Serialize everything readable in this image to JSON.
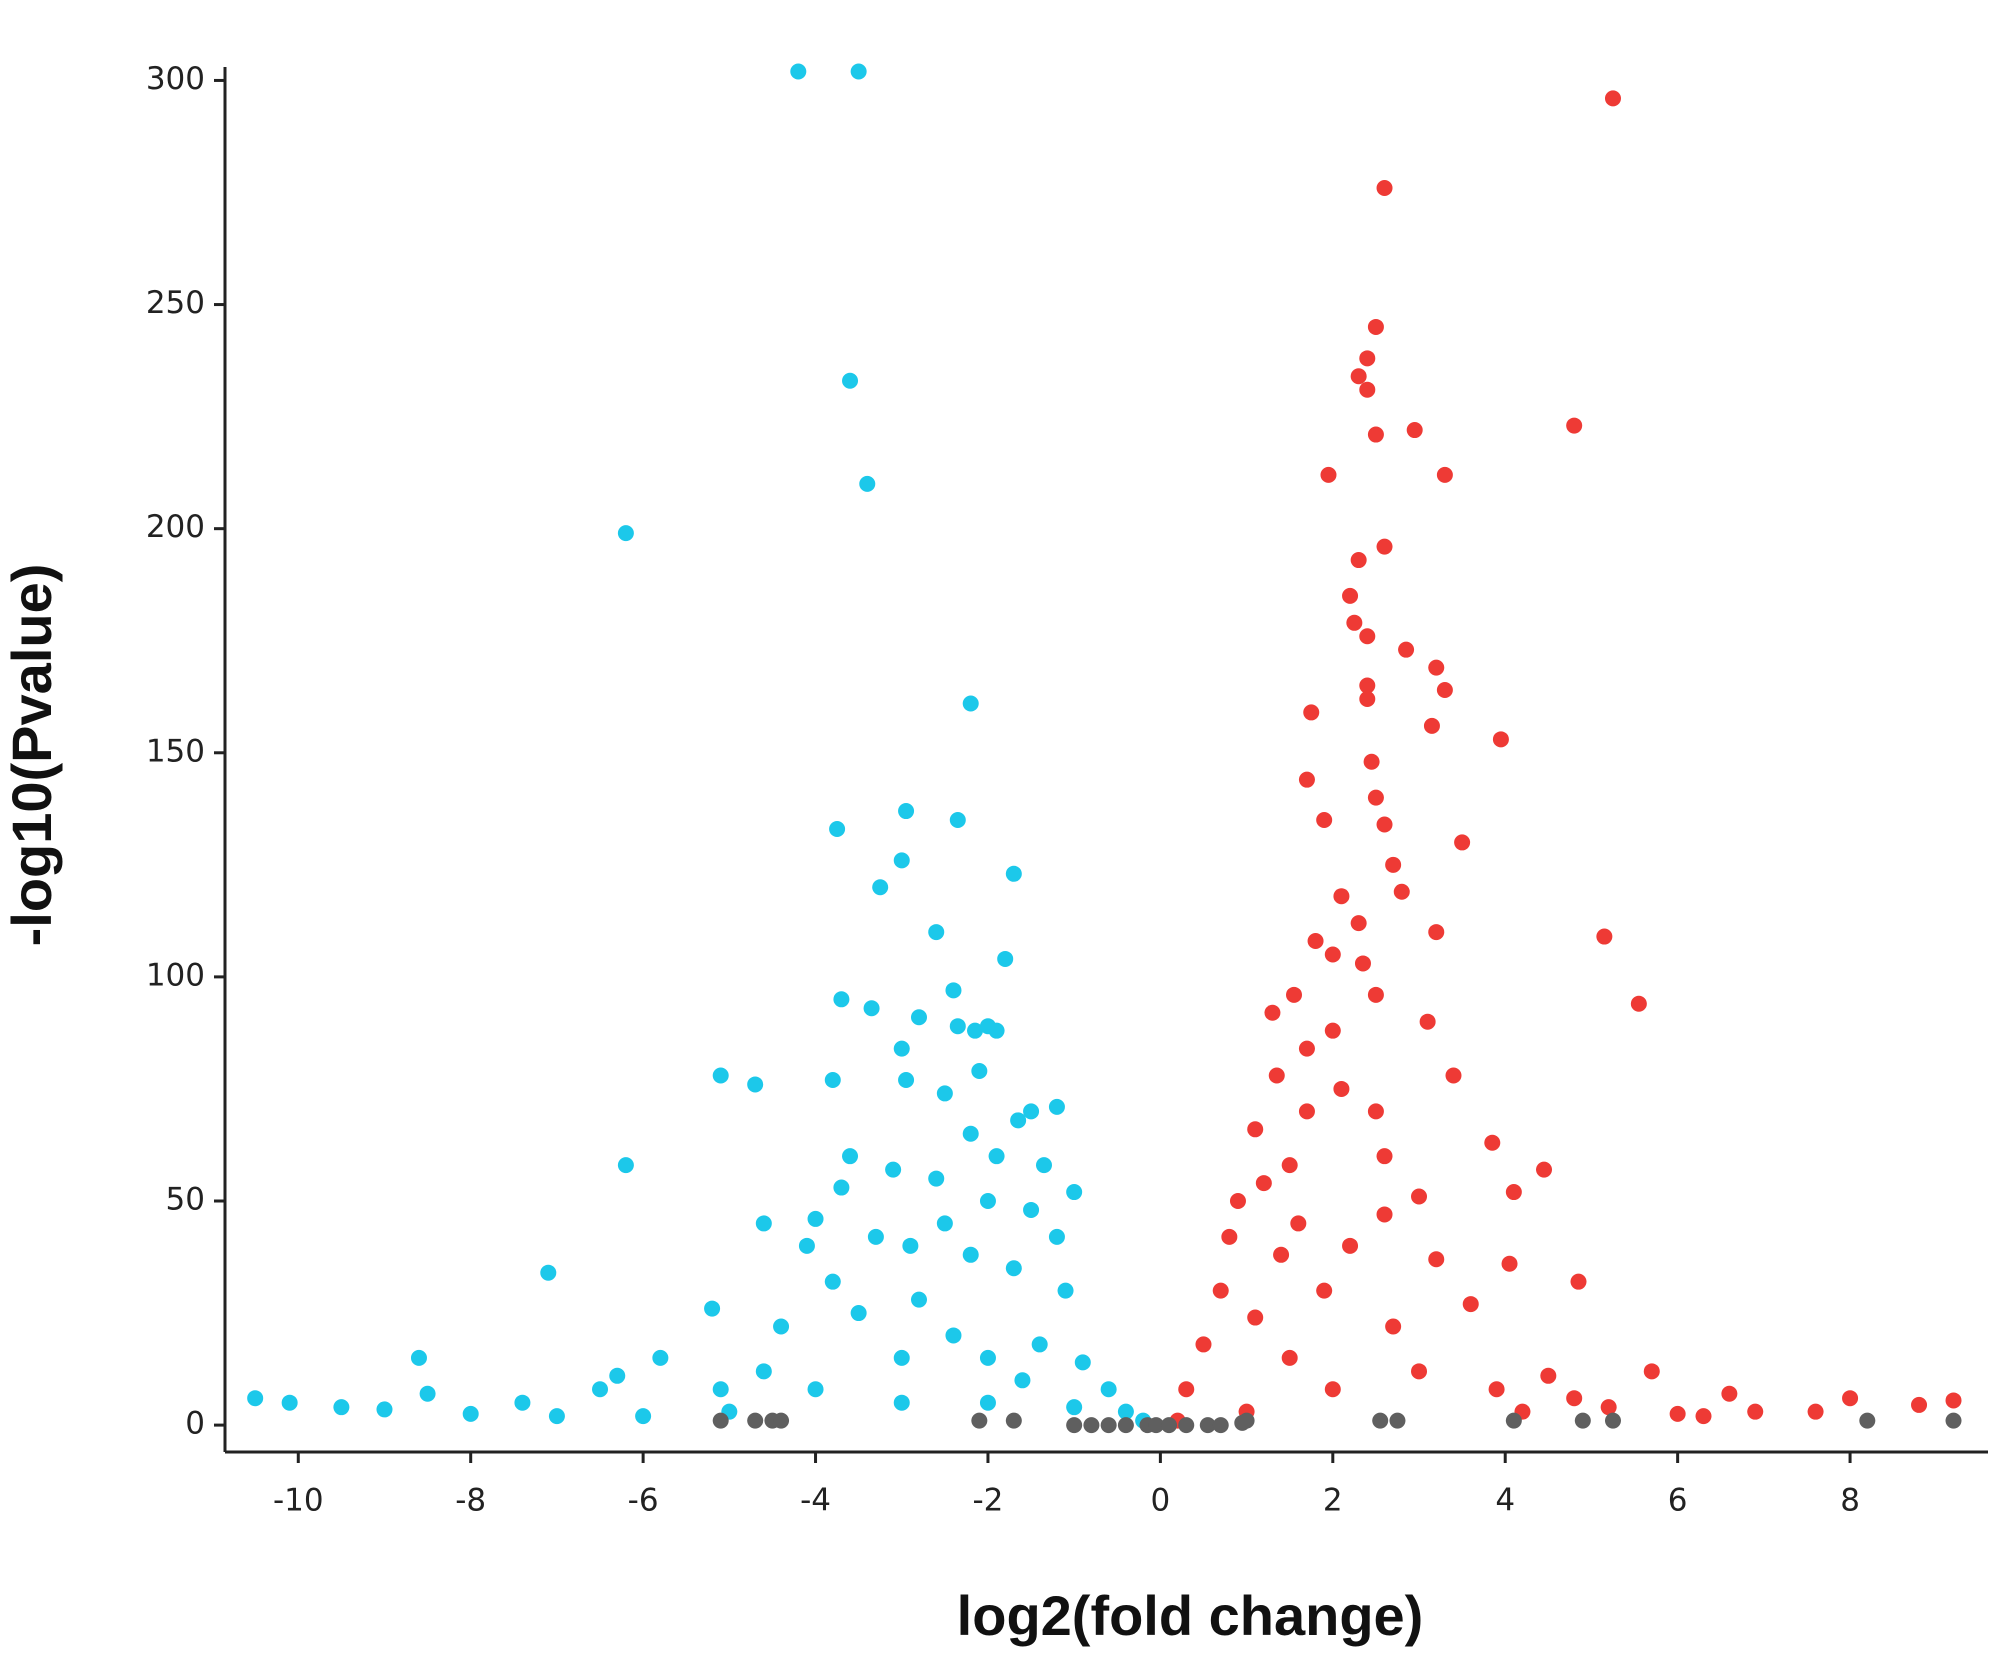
{
  "chart_data": {
    "type": "scatter",
    "x_label": "log2(fold change)",
    "y_label": "-log10(Pvalue)",
    "xlim": [
      -10.85,
      9.6
    ],
    "ylim": [
      -6,
      303
    ],
    "xticks": [
      -10,
      -8,
      -6,
      -4,
      -2,
      0,
      2,
      4,
      6,
      8
    ],
    "yticks": [
      0,
      50,
      100,
      150,
      200,
      250,
      300
    ],
    "grid": false,
    "series": [
      {
        "color": "#1cc8ea",
        "x": [
          -4.2,
          -3.5,
          -3.6,
          -3.4,
          -6.2,
          -2.2,
          -2.95,
          -2.35,
          -3.75,
          -3.0,
          -3.25,
          -1.7,
          -2.6,
          -1.8,
          -2.4,
          -3.7,
          -3.35,
          -2.8,
          -2.35,
          -2.0,
          -1.9,
          -2.15,
          -3.0,
          -2.1,
          -5.1,
          -3.8,
          -4.7,
          -2.95,
          -2.5,
          -1.5,
          -1.2,
          -1.65,
          -2.2,
          -6.2,
          -3.6,
          -3.1,
          -1.9,
          -1.35,
          -3.7,
          -2.6,
          -1.0,
          -4.6,
          -4.0,
          -2.0,
          -2.5,
          -1.5,
          -4.1,
          -3.3,
          -2.9,
          -1.2,
          -7.1,
          -3.8,
          -2.2,
          -1.7,
          -5.2,
          -4.4,
          -3.5,
          -2.8,
          -1.1,
          -2.4,
          -1.4,
          -8.6,
          -5.8,
          -3.0,
          -2.0,
          -0.9,
          -4.6,
          -1.6,
          -0.6,
          -6.3,
          -5.1,
          -8.5,
          -6.5,
          -4.0,
          -10.5,
          -10.1,
          -9.5,
          -9.0,
          -8.0,
          -7.4,
          -7.0,
          -6.0,
          -5.0,
          -3.0,
          -2.0,
          -1.0,
          -0.4,
          -0.2
        ],
        "values": [
          302,
          302,
          233,
          210,
          199,
          161,
          137,
          135,
          133,
          126,
          120,
          123,
          110,
          104,
          97,
          95,
          93,
          91,
          89,
          89,
          88,
          88,
          84,
          79,
          78,
          77,
          76,
          77,
          74,
          70,
          71,
          68,
          65,
          58,
          60,
          57,
          60,
          58,
          53,
          55,
          52,
          45,
          46,
          50,
          45,
          48,
          40,
          42,
          40,
          42,
          34,
          32,
          38,
          35,
          26,
          22,
          25,
          28,
          30,
          20,
          18,
          15,
          15,
          15,
          15,
          14,
          12,
          10,
          8,
          11,
          8,
          7,
          8,
          8,
          6,
          5,
          4,
          3.5,
          2.5,
          5,
          2,
          2,
          3,
          5,
          5,
          4,
          3,
          1
        ]
      },
      {
        "color": "#ee3a35",
        "x": [
          5.25,
          2.6,
          2.5,
          2.4,
          2.3,
          2.4,
          2.5,
          2.95,
          4.8,
          1.95,
          3.3,
          2.6,
          2.3,
          2.2,
          2.25,
          2.4,
          2.85,
          3.2,
          2.4,
          3.3,
          1.75,
          2.4,
          3.15,
          3.95,
          2.45,
          1.7,
          2.5,
          1.9,
          3.5,
          2.6,
          2.7,
          2.1,
          3.2,
          2.8,
          5.15,
          1.8,
          2.3,
          2.0,
          2.35,
          1.55,
          2.5,
          5.55,
          1.3,
          3.1,
          2.0,
          1.7,
          3.4,
          1.35,
          2.1,
          1.7,
          2.5,
          1.1,
          3.85,
          1.5,
          2.6,
          4.45,
          1.2,
          3.0,
          4.1,
          0.9,
          2.6,
          1.6,
          0.8,
          2.2,
          1.4,
          3.2,
          4.05,
          4.85,
          0.7,
          1.9,
          3.6,
          1.1,
          2.7,
          0.5,
          1.5,
          3.0,
          5.7,
          4.5,
          0.3,
          2.0,
          3.9,
          4.8,
          6.6,
          8.0,
          9.2,
          8.8,
          7.6,
          6.9,
          6.0,
          6.3,
          5.2,
          4.2,
          1.0,
          0.2
        ],
        "values": [
          296,
          276,
          245,
          238,
          234,
          231,
          221,
          222,
          223,
          212,
          212,
          196,
          193,
          185,
          179,
          176,
          173,
          169,
          165,
          164,
          159,
          162,
          156,
          153,
          148,
          144,
          140,
          135,
          130,
          134,
          125,
          118,
          110,
          119,
          109,
          108,
          112,
          105,
          103,
          96,
          96,
          94,
          92,
          90,
          88,
          84,
          78,
          78,
          75,
          70,
          70,
          66,
          63,
          58,
          60,
          57,
          54,
          51,
          52,
          50,
          47,
          45,
          42,
          40,
          38,
          37,
          36,
          32,
          30,
          30,
          27,
          24,
          22,
          18,
          15,
          12,
          12,
          11,
          8,
          8,
          8,
          6,
          7,
          6,
          5.5,
          4.5,
          3,
          3,
          2.5,
          2,
          4,
          3,
          3,
          1
        ]
      },
      {
        "color": "#5f5f5f",
        "x": [
          -5.1,
          -4.7,
          -4.5,
          -4.4,
          -2.1,
          -1.7,
          -1.0,
          -0.8,
          -0.6,
          -0.4,
          -0.15,
          -0.05,
          0.1,
          0.3,
          0.55,
          0.7,
          0.95,
          1.0,
          2.55,
          2.75,
          4.1,
          4.9,
          5.25,
          8.2,
          9.2
        ],
        "values": [
          1,
          1,
          1,
          1,
          1,
          1,
          0,
          0,
          0,
          0,
          0,
          0,
          0,
          0,
          0,
          0,
          0.5,
          1,
          1,
          1,
          1,
          1,
          1,
          1,
          1
        ]
      }
    ]
  }
}
